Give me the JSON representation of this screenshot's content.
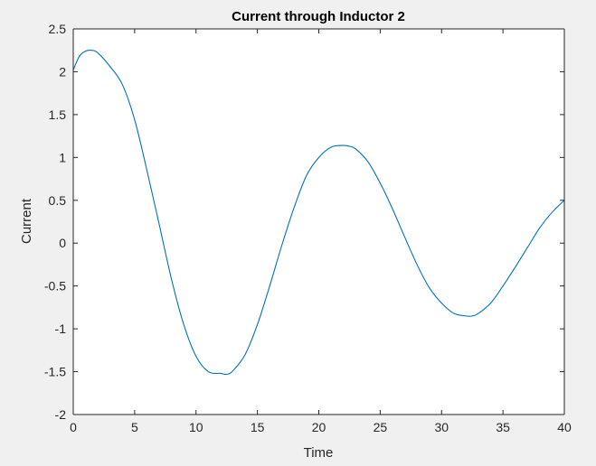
{
  "chart_data": {
    "type": "line",
    "title": "Current through Inductor 2",
    "xlabel": "Time",
    "ylabel": "Current",
    "xlim": [
      0,
      40
    ],
    "ylim": [
      -2,
      2.5
    ],
    "xticks": [
      0,
      5,
      10,
      15,
      20,
      25,
      30,
      35,
      40
    ],
    "yticks": [
      -2,
      -1.5,
      -1,
      -0.5,
      0,
      0.5,
      1,
      1.5,
      2,
      2.5
    ],
    "xtick_labels": [
      "0",
      "5",
      "10",
      "15",
      "20",
      "25",
      "30",
      "35",
      "40"
    ],
    "ytick_labels": [
      "-2",
      "-1.5",
      "-1",
      "-0.5",
      "0",
      "0.5",
      "1",
      "1.5",
      "2",
      "2.5"
    ],
    "grid": false,
    "legend": "none",
    "colors": {
      "line": "#0072bd",
      "axes": "#262626",
      "plot_background": "#ffffff",
      "figure_background": "#f0f0f0"
    },
    "series": [
      {
        "color": "#0072bd",
        "x": [
          0,
          0.5,
          1,
          1.5,
          2,
          3,
          4,
          5,
          6,
          7,
          8,
          9,
          10,
          11,
          12,
          12.5,
          13,
          14,
          15,
          16,
          17,
          18,
          19,
          20,
          21,
          22,
          22.5,
          23,
          24,
          25,
          26,
          27,
          28,
          29,
          30,
          31,
          32,
          32.5,
          33,
          34,
          35,
          36,
          37,
          38,
          39,
          40
        ],
        "y": [
          2.02,
          2.18,
          2.24,
          2.25,
          2.22,
          2.06,
          1.85,
          1.44,
          0.85,
          0.22,
          -0.42,
          -0.95,
          -1.32,
          -1.5,
          -1.52,
          -1.53,
          -1.49,
          -1.3,
          -0.95,
          -0.5,
          -0.02,
          0.42,
          0.79,
          1.0,
          1.12,
          1.14,
          1.13,
          1.1,
          0.95,
          0.7,
          0.4,
          0.07,
          -0.25,
          -0.52,
          -0.7,
          -0.82,
          -0.85,
          -0.85,
          -0.82,
          -0.7,
          -0.5,
          -0.28,
          -0.05,
          0.18,
          0.36,
          0.5
        ]
      }
    ]
  }
}
